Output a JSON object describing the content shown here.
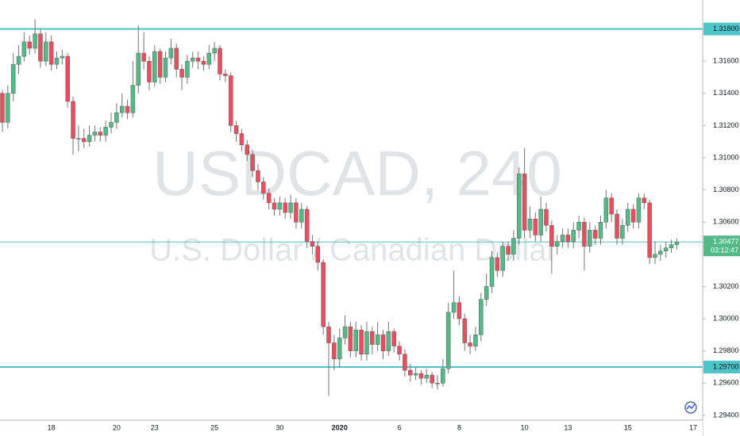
{
  "chart_data": {
    "type": "candlestick",
    "title": "USDCAD, 240",
    "subtitle": "U.S. Dollar / Canadian Dollar",
    "up_color": "#53b987",
    "down_color": "#eb4d5c",
    "categories": [
      null,
      null,
      null,
      null,
      null,
      null,
      null,
      null,
      null,
      "18",
      null,
      null,
      null,
      null,
      null,
      null,
      null,
      null,
      null,
      null,
      null,
      "20",
      null,
      null,
      null,
      null,
      null,
      null,
      "23",
      null,
      null,
      null,
      null,
      null,
      null,
      null,
      null,
      null,
      null,
      "25",
      null,
      null,
      null,
      null,
      null,
      null,
      null,
      null,
      null,
      null,
      null,
      "30",
      null,
      null,
      null,
      null,
      null,
      null,
      null,
      null,
      null,
      null,
      "2020",
      null,
      null,
      null,
      null,
      null,
      null,
      null,
      null,
      null,
      null,
      "6",
      null,
      null,
      null,
      null,
      null,
      null,
      null,
      null,
      null,
      null,
      "8",
      null,
      null,
      null,
      null,
      null,
      null,
      null,
      null,
      null,
      null,
      null,
      "10",
      null,
      null,
      null,
      null,
      null,
      null,
      null,
      "13",
      null,
      null,
      null,
      null,
      null,
      null,
      null,
      null,
      null,
      null,
      "15",
      null,
      null,
      null,
      null,
      null,
      null,
      null,
      null,
      null,
      null,
      null,
      "17"
    ],
    "open": [
      1.314,
      1.3122,
      1.314,
      1.3158,
      1.3163,
      1.3172,
      1.3168,
      1.3177,
      1.316,
      1.3172,
      1.3158,
      1.3162,
      1.3163,
      1.3135,
      1.3112,
      1.3112,
      1.311,
      1.3114,
      1.3116,
      1.3114,
      1.3119,
      1.3122,
      1.3128,
      1.3132,
      1.3128,
      1.3145,
      1.3165,
      1.316,
      1.3147,
      1.3166,
      1.315,
      1.3162,
      1.3168,
      1.3155,
      1.315,
      1.316,
      1.3162,
      1.316,
      1.3158,
      1.3165,
      1.3168,
      1.3152,
      1.3151,
      1.312,
      1.3115,
      1.3108,
      1.3102,
      1.3092,
      1.3085,
      1.3078,
      1.3072,
      1.3068,
      1.3072,
      1.3066,
      1.3072,
      1.306,
      1.3068,
      1.3048,
      1.3045,
      1.3035,
      1.2995,
      1.2985,
      1.2975,
      1.2988,
      1.2995,
      1.298,
      1.2993,
      1.2978,
      1.2992,
      1.2984,
      1.299,
      1.298,
      1.2992,
      1.2983,
      1.2978,
      1.2968,
      1.2965,
      1.2966,
      1.2963,
      1.2965,
      1.296,
      1.296,
      1.2969,
      1.3004,
      1.301,
      1.3,
      1.2985,
      1.2983,
      1.299,
      1.3012,
      1.302,
      1.3038,
      1.303,
      1.3045,
      1.304,
      1.305,
      1.309,
      1.3055,
      1.3062,
      1.3052,
      1.3068,
      1.3058,
      1.3045,
      1.3048,
      1.3052,
      1.3048,
      1.3055,
      1.306,
      1.3045,
      1.3055,
      1.305,
      1.306,
      1.3075,
      1.3065,
      1.305,
      1.3058,
      1.3068,
      1.306,
      1.3075,
      1.3072,
      1.3038,
      1.304,
      1.3042,
      1.3044,
      1.3046,
      null,
      null,
      null
    ],
    "high": [
      1.3142,
      1.3145,
      1.3165,
      1.317,
      1.3178,
      1.3176,
      1.3186,
      1.318,
      1.3178,
      1.3176,
      1.3166,
      1.3167,
      1.3165,
      1.3138,
      1.312,
      1.3118,
      1.312,
      1.312,
      1.3119,
      1.3123,
      1.3128,
      1.3134,
      1.314,
      1.3136,
      1.316,
      1.3182,
      1.3178,
      1.3163,
      1.317,
      1.3168,
      1.3166,
      1.3174,
      1.3171,
      1.3158,
      1.3164,
      1.3166,
      1.3166,
      1.3163,
      1.317,
      1.3172,
      1.317,
      1.3155,
      1.3153,
      1.3123,
      1.3118,
      1.3111,
      1.3105,
      1.3096,
      1.3088,
      1.3081,
      1.3075,
      1.3076,
      1.3075,
      1.3077,
      1.3075,
      1.3072,
      1.307,
      1.3052,
      1.3048,
      1.3037,
      1.2998,
      1.299,
      1.2994,
      1.3002,
      1.2998,
      1.2998,
      1.2996,
      1.2998,
      1.2995,
      1.2998,
      1.2993,
      1.2998,
      1.2994,
      1.2986,
      1.2981,
      1.2972,
      1.297,
      1.2968,
      1.2969,
      1.2967,
      1.2965,
      1.2975,
      1.301,
      1.303,
      1.3014,
      1.3003,
      1.299,
      1.2995,
      1.3016,
      1.3028,
      1.3042,
      1.3041,
      1.3048,
      1.3048,
      1.3055,
      1.3094,
      1.3106,
      1.307,
      1.3066,
      1.3076,
      1.3072,
      1.3061,
      1.3052,
      1.3056,
      1.3056,
      1.306,
      1.3064,
      1.3063,
      1.306,
      1.3058,
      1.3064,
      1.308,
      1.3078,
      1.3068,
      1.3062,
      1.3072,
      1.3071,
      1.3078,
      1.3078,
      1.3074,
      1.3048,
      1.3046,
      1.3048,
      1.3049,
      1.305,
      null,
      null,
      null
    ],
    "low": [
      1.3116,
      1.3118,
      1.3135,
      1.3152,
      1.316,
      1.3164,
      1.3165,
      1.3156,
      1.3157,
      1.3154,
      1.3155,
      1.3158,
      1.3131,
      1.3102,
      1.3104,
      1.3106,
      1.3107,
      1.311,
      1.311,
      1.311,
      1.3115,
      1.3118,
      1.3125,
      1.3124,
      1.3125,
      1.314,
      1.3155,
      1.3142,
      1.3144,
      1.3146,
      1.3147,
      1.3158,
      1.315,
      1.3142,
      1.3146,
      1.3156,
      1.3155,
      1.3154,
      1.3155,
      1.316,
      1.3148,
      1.3147,
      1.3116,
      1.311,
      1.3104,
      1.3098,
      1.3088,
      1.308,
      1.3074,
      1.3068,
      1.3064,
      1.3064,
      1.3062,
      1.3062,
      1.3056,
      1.3056,
      1.3044,
      1.304,
      1.303,
      1.299,
      1.2952,
      1.2968,
      1.297,
      1.2984,
      1.2976,
      1.2976,
      1.2974,
      1.2974,
      1.2978,
      1.298,
      1.2975,
      1.2977,
      1.2979,
      1.2974,
      1.2964,
      1.2961,
      1.2962,
      1.2959,
      1.296,
      1.2957,
      1.2956,
      1.2958,
      1.2966,
      1.3,
      1.2996,
      1.298,
      1.2978,
      1.298,
      1.2986,
      1.3008,
      1.3016,
      1.3026,
      1.3026,
      1.3036,
      1.3036,
      1.3046,
      1.305,
      1.305,
      1.3048,
      1.3048,
      1.3054,
      1.3028,
      1.304,
      1.3044,
      1.3044,
      1.3044,
      1.305,
      1.303,
      1.3041,
      1.3046,
      1.3046,
      1.3056,
      1.306,
      1.3046,
      1.3046,
      1.3054,
      1.3056,
      1.3056,
      1.3068,
      1.3034,
      1.3034,
      1.3036,
      1.3038,
      1.3041,
      1.3043,
      null,
      null,
      null
    ],
    "close": [
      1.3122,
      1.314,
      1.3158,
      1.3163,
      1.3172,
      1.3168,
      1.3177,
      1.316,
      1.3172,
      1.3158,
      1.3162,
      1.3163,
      1.3135,
      1.3112,
      1.3112,
      1.311,
      1.3114,
      1.3116,
      1.3114,
      1.3119,
      1.3122,
      1.3128,
      1.3132,
      1.3128,
      1.3145,
      1.3165,
      1.316,
      1.3147,
      1.3166,
      1.315,
      1.3162,
      1.3168,
      1.3155,
      1.315,
      1.316,
      1.3162,
      1.316,
      1.3158,
      1.3165,
      1.3168,
      1.3152,
      1.3151,
      1.312,
      1.3115,
      1.3108,
      1.3102,
      1.3092,
      1.3085,
      1.3078,
      1.3072,
      1.3068,
      1.3072,
      1.3066,
      1.3072,
      1.306,
      1.3068,
      1.3048,
      1.3045,
      1.3035,
      1.2995,
      1.2985,
      1.2975,
      1.2988,
      1.2995,
      1.298,
      1.2993,
      1.2978,
      1.2992,
      1.2984,
      1.299,
      1.298,
      1.2992,
      1.2983,
      1.2978,
      1.2968,
      1.2965,
      1.2966,
      1.2963,
      1.2965,
      1.296,
      1.296,
      1.2969,
      1.3004,
      1.301,
      1.3,
      1.2985,
      1.2983,
      1.299,
      1.3012,
      1.302,
      1.3038,
      1.303,
      1.3045,
      1.304,
      1.305,
      1.309,
      1.3055,
      1.3062,
      1.3052,
      1.3068,
      1.3058,
      1.3045,
      1.3048,
      1.3052,
      1.3048,
      1.3055,
      1.306,
      1.3045,
      1.3055,
      1.305,
      1.306,
      1.3075,
      1.3065,
      1.305,
      1.3058,
      1.3068,
      1.306,
      1.3075,
      1.3072,
      1.3038,
      1.304,
      1.3042,
      1.3044,
      1.3046,
      1.30477,
      null,
      null,
      null
    ],
    "ylim": [
      1.2937,
      1.3198
    ],
    "yticks": [
      {
        "value": 1.294,
        "label": "1.29400"
      },
      {
        "value": 1.296,
        "label": "1.29600"
      },
      {
        "value": 1.298,
        "label": "1.29800"
      },
      {
        "value": 1.3,
        "label": "1.30000"
      },
      {
        "value": 1.302,
        "label": "1.30200"
      },
      {
        "value": 1.306,
        "label": "1.30600"
      },
      {
        "value": 1.308,
        "label": "1.30800"
      },
      {
        "value": 1.31,
        "label": "1.31000"
      },
      {
        "value": 1.312,
        "label": "1.31200"
      },
      {
        "value": 1.314,
        "label": "1.31400"
      },
      {
        "value": 1.316,
        "label": "1.31600"
      }
    ],
    "levels": [
      {
        "value": 1.318,
        "label": "1.31800"
      },
      {
        "value": 1.297,
        "label": "1.29700"
      }
    ],
    "level_color": "#4fc3c8",
    "price_line": {
      "value": 1.30477,
      "label": "1.30477",
      "countdown": "03:12:47",
      "color": "#53b987"
    },
    "grid": false
  }
}
